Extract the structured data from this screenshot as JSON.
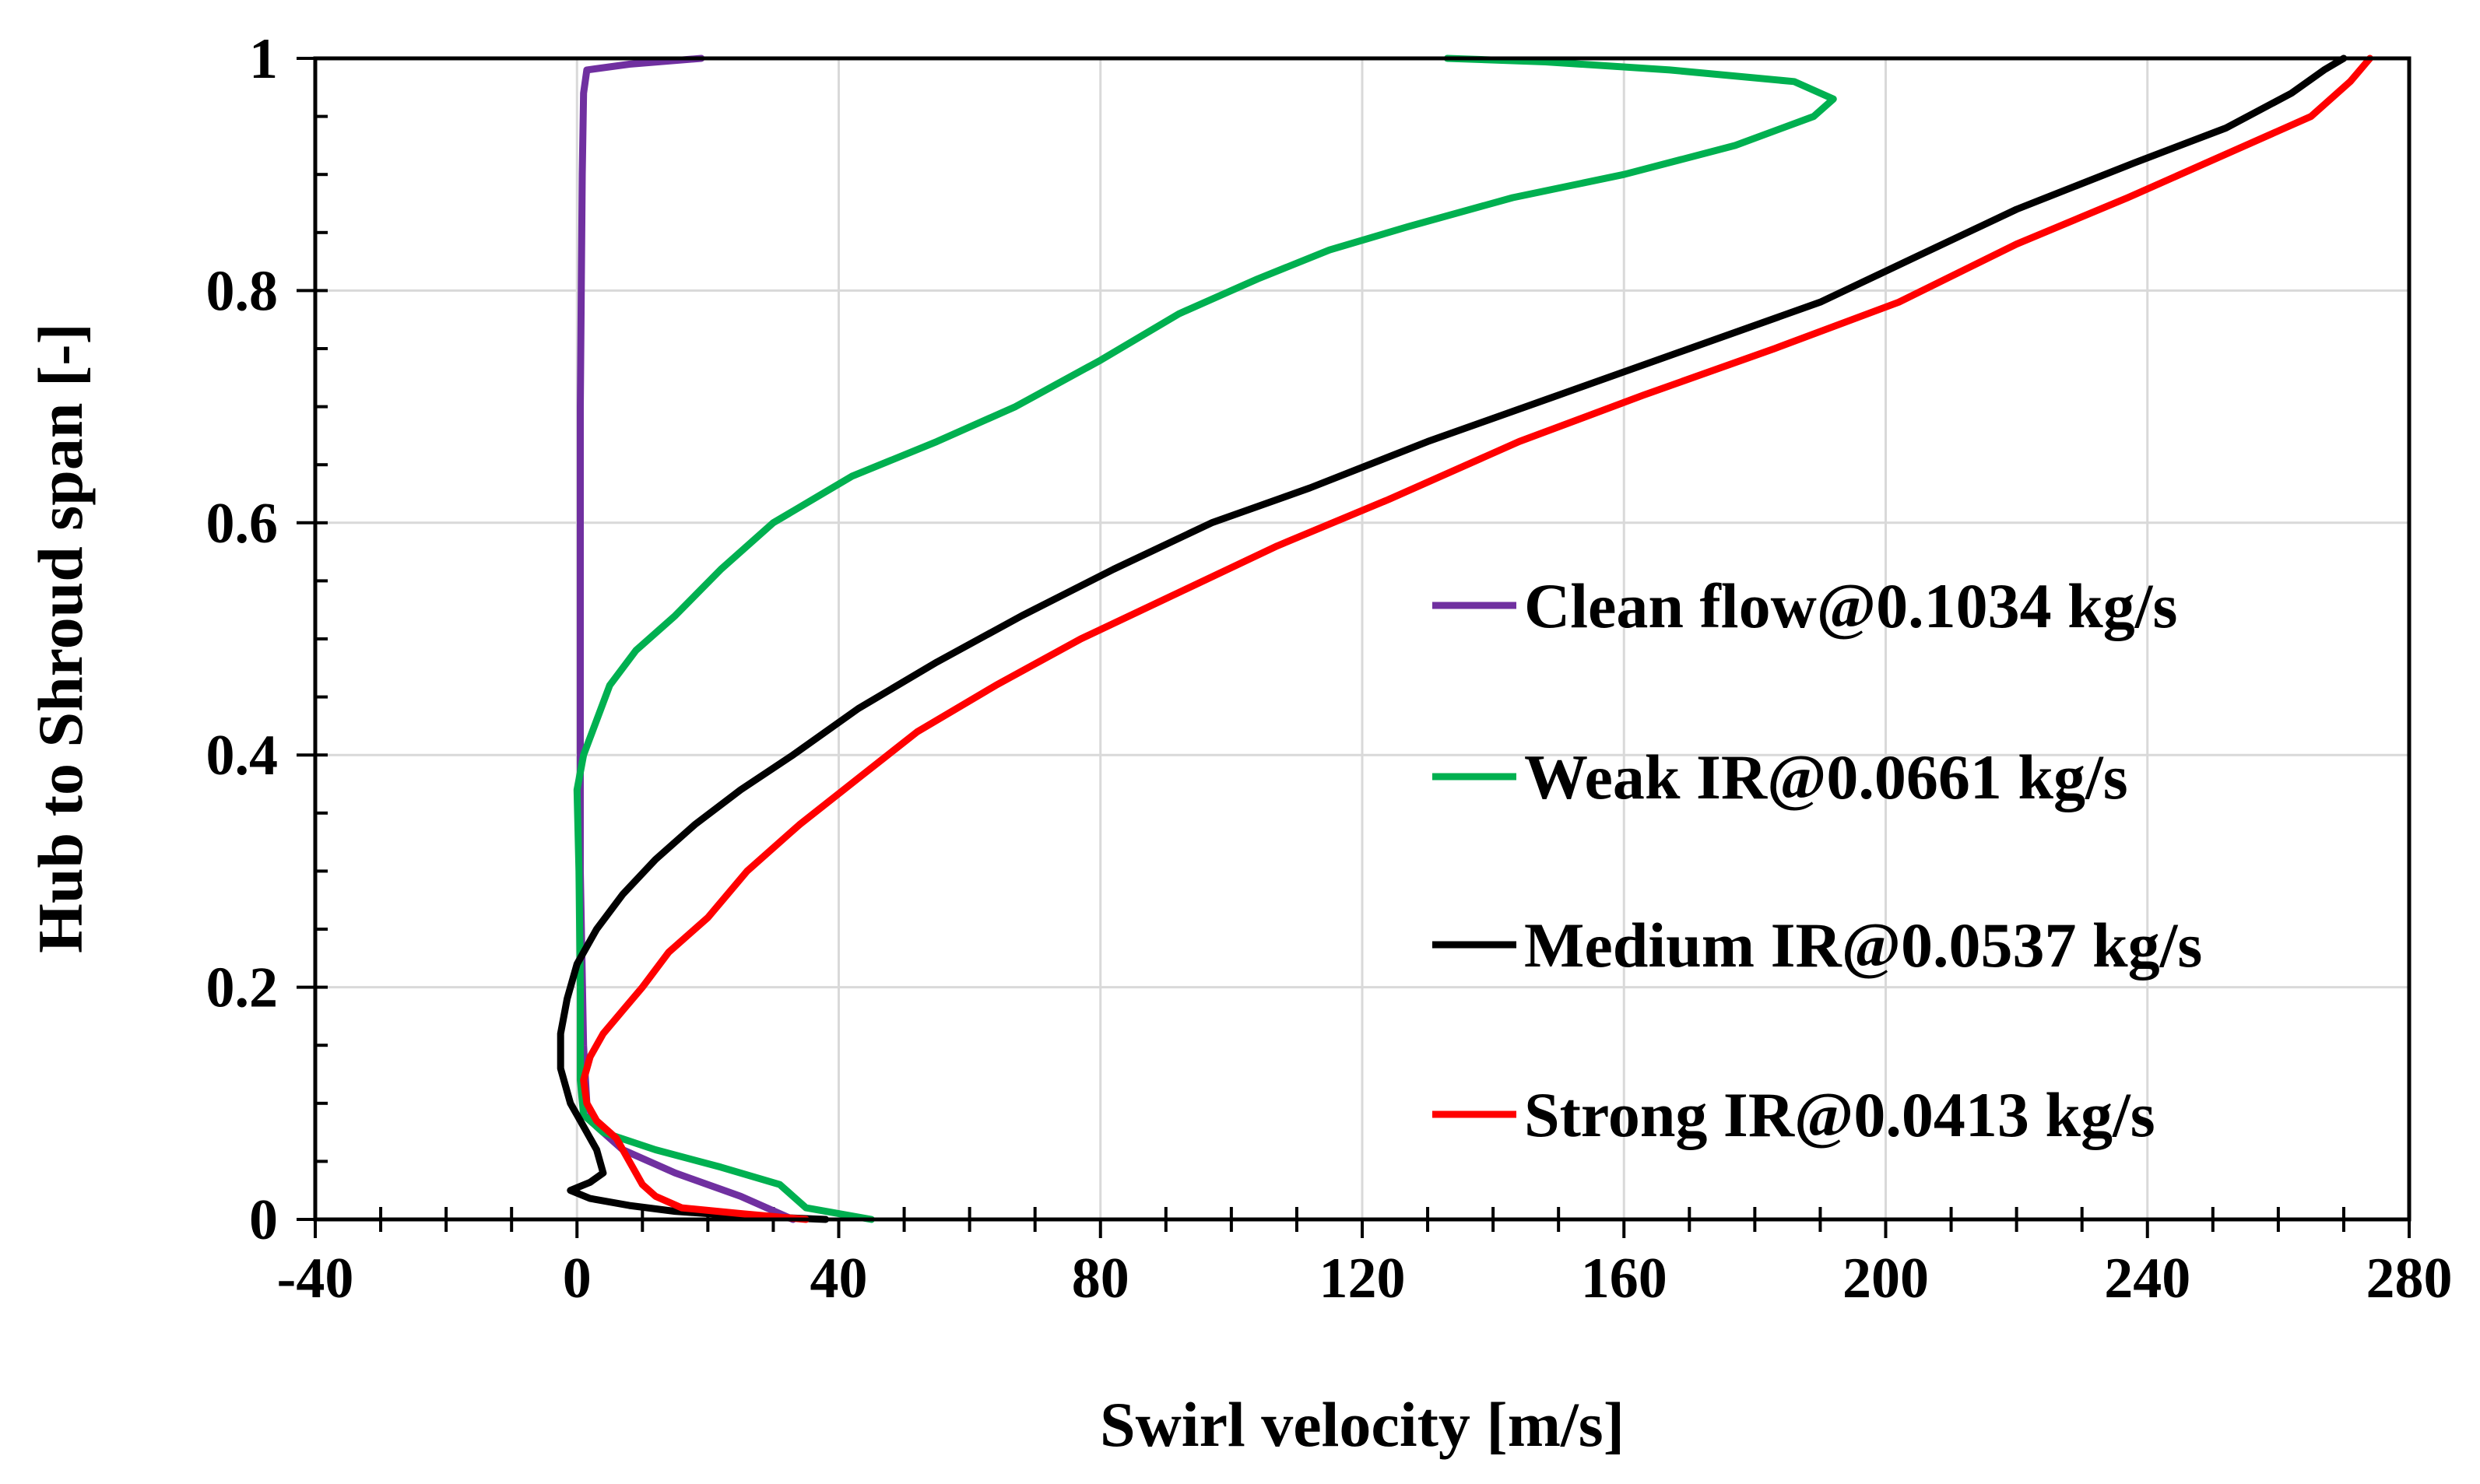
{
  "chart_data": {
    "type": "line",
    "title": "",
    "xlabel": "Swirl velocity [m/s]",
    "ylabel": "Hub to Shroud span [-]",
    "xlim": [
      -40,
      280
    ],
    "ylim": [
      0,
      1
    ],
    "xticks": [
      -40,
      0,
      40,
      80,
      120,
      160,
      200,
      240,
      280
    ],
    "yticks": [
      0,
      0.2,
      0.4,
      0.6,
      0.8,
      1
    ],
    "xtick_labels": [
      "-40",
      "0",
      "40",
      "80",
      "120",
      "160",
      "200",
      "240",
      "280"
    ],
    "ytick_labels": [
      "0",
      "0.2",
      "0.4",
      "0.6",
      "0.8",
      "1"
    ],
    "grid": true,
    "legend_position": "right",
    "series": [
      {
        "name": "Clean flow@0.1034 kg/s",
        "color": "#7030a0",
        "points": [
          [
            33,
            0.0
          ],
          [
            25,
            0.02
          ],
          [
            15,
            0.04
          ],
          [
            7,
            0.06
          ],
          [
            3,
            0.08
          ],
          [
            1.5,
            0.1
          ],
          [
            1,
            0.15
          ],
          [
            0.5,
            0.3
          ],
          [
            0.5,
            0.5
          ],
          [
            0.5,
            0.7
          ],
          [
            0.8,
            0.9
          ],
          [
            1,
            0.97
          ],
          [
            1.5,
            0.99
          ],
          [
            8,
            0.995
          ],
          [
            19,
            1.0
          ]
        ]
      },
      {
        "name": "Weak IR@0.0661 kg/s",
        "color": "#00b050",
        "points": [
          [
            45,
            0.0
          ],
          [
            35,
            0.01
          ],
          [
            33,
            0.02
          ],
          [
            31,
            0.03
          ],
          [
            22,
            0.045
          ],
          [
            12,
            0.06
          ],
          [
            4,
            0.075
          ],
          [
            1,
            0.09
          ],
          [
            0.5,
            0.12
          ],
          [
            0.5,
            0.2
          ],
          [
            0.3,
            0.3
          ],
          [
            0,
            0.37
          ],
          [
            1,
            0.4
          ],
          [
            3,
            0.43
          ],
          [
            5,
            0.46
          ],
          [
            9,
            0.49
          ],
          [
            15,
            0.52
          ],
          [
            22,
            0.56
          ],
          [
            30,
            0.6
          ],
          [
            42,
            0.64
          ],
          [
            55,
            0.67
          ],
          [
            67,
            0.7
          ],
          [
            80,
            0.74
          ],
          [
            92,
            0.78
          ],
          [
            104,
            0.81
          ],
          [
            115,
            0.835
          ],
          [
            127,
            0.855
          ],
          [
            143,
            0.88
          ],
          [
            160,
            0.9
          ],
          [
            177,
            0.925
          ],
          [
            189,
            0.95
          ],
          [
            192,
            0.965
          ],
          [
            186,
            0.98
          ],
          [
            167,
            0.99
          ],
          [
            148,
            0.997
          ],
          [
            133,
            1.0
          ]
        ]
      },
      {
        "name": "Medium IR@0.0537 kg/s",
        "color": "#000000",
        "points": [
          [
            38,
            0.0
          ],
          [
            25,
            0.003
          ],
          [
            15,
            0.007
          ],
          [
            8,
            0.012
          ],
          [
            2,
            0.018
          ],
          [
            -1,
            0.025
          ],
          [
            2,
            0.032
          ],
          [
            4,
            0.04
          ],
          [
            3,
            0.06
          ],
          [
            1,
            0.08
          ],
          [
            -1,
            0.1
          ],
          [
            -2.5,
            0.13
          ],
          [
            -2.5,
            0.16
          ],
          [
            -1.5,
            0.19
          ],
          [
            0,
            0.22
          ],
          [
            3,
            0.25
          ],
          [
            7,
            0.28
          ],
          [
            12,
            0.31
          ],
          [
            18,
            0.34
          ],
          [
            25,
            0.37
          ],
          [
            33,
            0.4
          ],
          [
            43,
            0.44
          ],
          [
            55,
            0.48
          ],
          [
            68,
            0.52
          ],
          [
            82,
            0.56
          ],
          [
            97,
            0.6
          ],
          [
            112,
            0.63
          ],
          [
            130,
            0.67
          ],
          [
            150,
            0.71
          ],
          [
            170,
            0.75
          ],
          [
            190,
            0.79
          ],
          [
            205,
            0.83
          ],
          [
            220,
            0.87
          ],
          [
            238,
            0.91
          ],
          [
            252,
            0.94
          ],
          [
            262,
            0.97
          ],
          [
            267,
            0.99
          ],
          [
            270,
            1.0
          ]
        ]
      },
      {
        "name": "Strong IR@0.0413 kg/s",
        "color": "#ff0000",
        "points": [
          [
            35,
            0.0
          ],
          [
            25,
            0.005
          ],
          [
            16,
            0.01
          ],
          [
            12,
            0.02
          ],
          [
            10,
            0.03
          ],
          [
            8,
            0.05
          ],
          [
            6,
            0.07
          ],
          [
            3,
            0.085
          ],
          [
            1.5,
            0.1
          ],
          [
            1,
            0.12
          ],
          [
            2,
            0.14
          ],
          [
            4,
            0.16
          ],
          [
            7,
            0.18
          ],
          [
            10,
            0.2
          ],
          [
            14,
            0.23
          ],
          [
            20,
            0.26
          ],
          [
            26,
            0.3
          ],
          [
            34,
            0.34
          ],
          [
            43,
            0.38
          ],
          [
            52,
            0.42
          ],
          [
            64,
            0.46
          ],
          [
            77,
            0.5
          ],
          [
            92,
            0.54
          ],
          [
            107,
            0.58
          ],
          [
            124,
            0.62
          ],
          [
            144,
            0.67
          ],
          [
            163,
            0.71
          ],
          [
            183,
            0.75
          ],
          [
            202,
            0.79
          ],
          [
            220,
            0.84
          ],
          [
            237,
            0.88
          ],
          [
            253,
            0.92
          ],
          [
            265,
            0.95
          ],
          [
            271,
            0.98
          ],
          [
            274,
            1.0
          ]
        ]
      }
    ]
  }
}
